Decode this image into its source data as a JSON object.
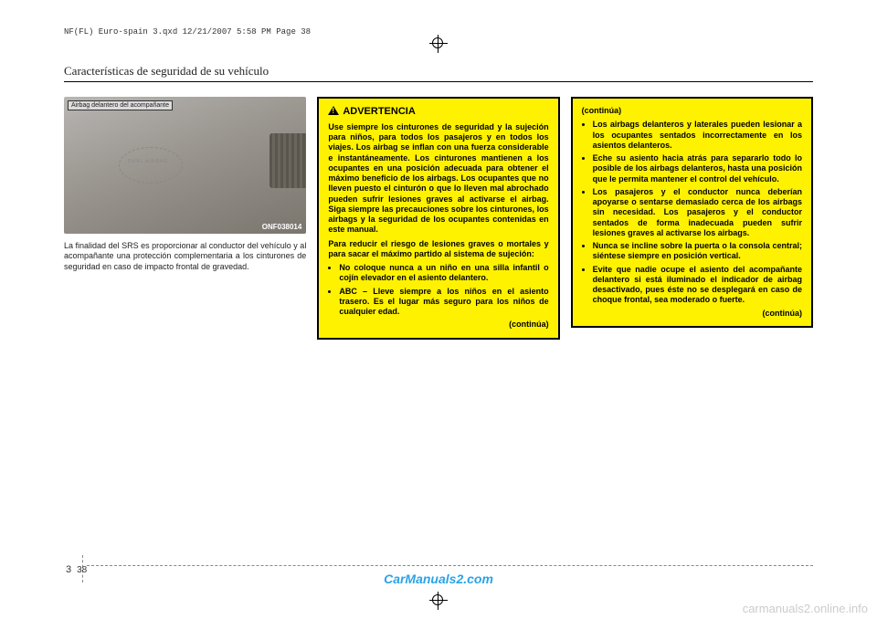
{
  "header_line": "NF(FL) Euro-spain 3.qxd  12/21/2007  5:58 PM  Page 38",
  "section_title": "Características de seguridad de su vehículo",
  "photo": {
    "label": "Airbag delantero del acompañante",
    "code": "ONF038014",
    "circle_text": "DUAL AIRBAG"
  },
  "col1_text": "La finalidad del SRS es proporcionar al conductor del vehículo y al acompañante una protección complementaria a los cinturones de seguridad en caso de impacto frontal de gravedad.",
  "warn1": {
    "title": "ADVERTENCIA",
    "p1": "Use siempre los cinturones de seguridad y la sujeción para niños, para todos los pasajeros y en todos los viajes.  Los airbag se inflan con una fuerza considerable e instantáneamente. Los cinturones mantienen a los ocupantes en una posición adecuada para obtener el máximo beneficio de los airbags. Los ocupantes que no lleven puesto el cinturón o que lo lleven mal abrochado pueden sufrir lesiones graves al activarse el airbag. Siga siempre las precauciones sobre los cinturones, los airbags y la seguridad de los ocupantes contenidas en este manual.",
    "p2": "Para reducir el riesgo de lesiones graves o mortales y para sacar el máximo partido al sistema de sujeción:",
    "b1": "No coloque nunca a un niño en una silla infantil o cojín elevador en el asiento delantero.",
    "b2": "ABC – Lleve siempre a los niños en el asiento trasero. Es el lugar más seguro para los niños de cualquier edad.",
    "cont": "(continúa)"
  },
  "warn2": {
    "cont_top": "(continúa)",
    "b1": "Los airbags delanteros y laterales pueden lesionar a los ocupantes sentados incorrectamente en los asientos delanteros.",
    "b2": "Eche su asiento hacia atrás para separarlo todo lo posible de los airbags delanteros, hasta una posición que le permita mantener el control del vehículo.",
    "b3": "Los pasajeros y el conductor nunca deberían apoyarse o sentarse demasiado cerca de los airbags sin necesidad. Los pasajeros y el conductor sentados de forma inadecuada pueden sufrir lesiones graves al activarse los airbags.",
    "b4": "Nunca se incline sobre la puerta o la consola central; siéntese siempre en posición vertical.",
    "b5": "Evite que nadie ocupe el asiento del acompañante delantero si está iluminado el indicador de airbag desactivado, pues éste no se desplegará en caso de choque frontal, sea moderado o fuerte.",
    "cont_bottom": "(continúa)"
  },
  "page_section": "3",
  "page_number": "38",
  "watermark1": "CarManuals2.com",
  "watermark2": "carmanuals2.online.info",
  "colors": {
    "warn_bg": "#fff200",
    "watermark1": "#2aa3e8",
    "watermark2": "#cccccc"
  }
}
